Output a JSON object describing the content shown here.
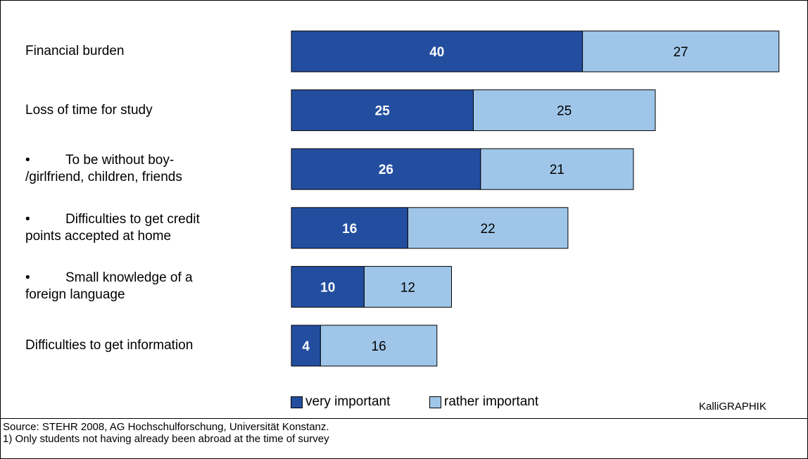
{
  "chart_data": {
    "type": "bar",
    "orientation": "horizontal",
    "stacked": true,
    "categories": [
      "Financial burden",
      "Loss of time for study",
      "To be without boy- /girlfriend, children, friends",
      "Difficulties to get credit points accepted at home",
      "Small knowledge of a foreign language",
      "Difficulties to get information"
    ],
    "category_lines": [
      {
        "bullet": false,
        "lines": [
          "Financial burden"
        ]
      },
      {
        "bullet": false,
        "lines": [
          "Loss of time for study"
        ]
      },
      {
        "bullet": true,
        "lines": [
          "To be without boy-",
          "/girlfriend, children, friends"
        ]
      },
      {
        "bullet": true,
        "lines": [
          "Difficulties to get credit",
          "points accepted at home"
        ]
      },
      {
        "bullet": true,
        "lines": [
          "Small knowledge of a",
          "foreign language"
        ]
      },
      {
        "bullet": false,
        "lines": [
          "Difficulties to get information"
        ]
      }
    ],
    "series": [
      {
        "name": "very important",
        "values": [
          40,
          25,
          26,
          16,
          10,
          4
        ],
        "color": "#234ea0",
        "label_color": "#ffffff",
        "label_bold": true
      },
      {
        "name": "rather important",
        "values": [
          27,
          25,
          21,
          22,
          12,
          16
        ],
        "color": "#9fc6e9",
        "label_color": "#000000",
        "label_bold": false
      }
    ],
    "xlim": [
      0,
      67
    ],
    "grid": false,
    "legend": "bottom-center"
  },
  "bullet_glyph": "•",
  "credit": "KalliGRAPHIK",
  "source_lines": [
    "Source: STEHR 2008, AG Hochschulforschung, Universität Konstanz.",
    "1) Only students not having already been abroad at the time of survey"
  ]
}
